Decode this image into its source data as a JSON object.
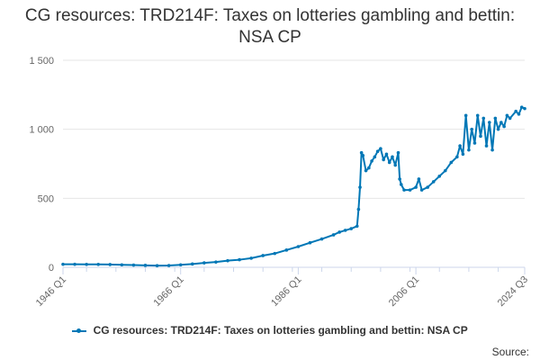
{
  "title": "CG resources: TRD214F: Taxes on lotteries gambling and bettin: NSA CP",
  "source_label": "Source:",
  "colors": {
    "series": "#0077b6",
    "grid": "#e6e6e6",
    "axis": "#ccd6eb"
  },
  "chart_data": {
    "type": "line",
    "title": "CG resources: TRD214F: Taxes on lotteries gambling and bettin: NSA CP",
    "xlabel": "",
    "ylabel": "",
    "x_range": [
      "1946 Q1",
      "2024 Q3"
    ],
    "ylim": [
      0,
      1500
    ],
    "y_ticks": [
      0,
      500,
      1000,
      1500
    ],
    "y_tick_labels": [
      "0",
      "500",
      "1 000",
      "1 500"
    ],
    "x_tick_labels": [
      "1946 Q1",
      "1966 Q1",
      "1986 Q1",
      "2006 Q1",
      "2024 Q3"
    ],
    "legend": "bottom",
    "grid": true,
    "series": [
      {
        "name": "CG resources: TRD214F: Taxes on lotteries gambling and bettin: NSA CP",
        "points": [
          [
            "1946",
            22
          ],
          [
            "1948",
            22
          ],
          [
            "1950",
            21
          ],
          [
            "1952",
            21
          ],
          [
            "1954",
            20
          ],
          [
            "1956",
            18
          ],
          [
            "1958",
            16
          ],
          [
            "1960",
            14
          ],
          [
            "1962",
            12
          ],
          [
            "1964",
            13
          ],
          [
            "1966",
            18
          ],
          [
            "1968",
            24
          ],
          [
            "1970",
            32
          ],
          [
            "1972",
            38
          ],
          [
            "1974",
            48
          ],
          [
            "1976",
            55
          ],
          [
            "1978",
            66
          ],
          [
            "1980",
            85
          ],
          [
            "1982",
            100
          ],
          [
            "1984",
            125
          ],
          [
            "1986",
            150
          ],
          [
            "1988",
            178
          ],
          [
            "1990",
            205
          ],
          [
            "1992",
            235
          ],
          [
            "1993",
            255
          ],
          [
            "1994",
            268
          ],
          [
            "1995",
            280
          ],
          [
            "1996",
            298
          ],
          [
            "1996.25",
            420
          ],
          [
            "1996.5",
            580
          ],
          [
            "1996.75",
            830
          ],
          [
            "1997",
            810
          ],
          [
            "1997.5",
            700
          ],
          [
            "1998",
            720
          ],
          [
            "1998.5",
            770
          ],
          [
            "1999",
            800
          ],
          [
            "1999.5",
            840
          ],
          [
            "2000",
            860
          ],
          [
            "2000.5",
            780
          ],
          [
            "2001",
            820
          ],
          [
            "2001.5",
            760
          ],
          [
            "2002",
            800
          ],
          [
            "2002.5",
            740
          ],
          [
            "2003",
            830
          ],
          [
            "2003.25",
            640
          ],
          [
            "2003.5",
            600
          ],
          [
            "2004",
            560
          ],
          [
            "2005",
            560
          ],
          [
            "2006",
            580
          ],
          [
            "2006.5",
            640
          ],
          [
            "2007",
            560
          ],
          [
            "2008",
            580
          ],
          [
            "2009",
            620
          ],
          [
            "2010",
            660
          ],
          [
            "2011",
            700
          ],
          [
            "2012",
            760
          ],
          [
            "2013",
            800
          ],
          [
            "2013.5",
            880
          ],
          [
            "2014",
            820
          ],
          [
            "2014.5",
            1100
          ],
          [
            "2015",
            850
          ],
          [
            "2015.5",
            1000
          ],
          [
            "2016",
            900
          ],
          [
            "2016.5",
            1100
          ],
          [
            "2017",
            950
          ],
          [
            "2017.5",
            1080
          ],
          [
            "2018",
            880
          ],
          [
            "2018.5",
            1050
          ],
          [
            "2019",
            850
          ],
          [
            "2019.5",
            1080
          ],
          [
            "2020",
            1000
          ],
          [
            "2020.5",
            1050
          ],
          [
            "2021",
            1020
          ],
          [
            "2021.5",
            1100
          ],
          [
            "2022",
            1080
          ],
          [
            "2023",
            1130
          ],
          [
            "2023.5",
            1110
          ],
          [
            "2024",
            1160
          ],
          [
            "2024.5",
            1150
          ]
        ]
      }
    ]
  }
}
